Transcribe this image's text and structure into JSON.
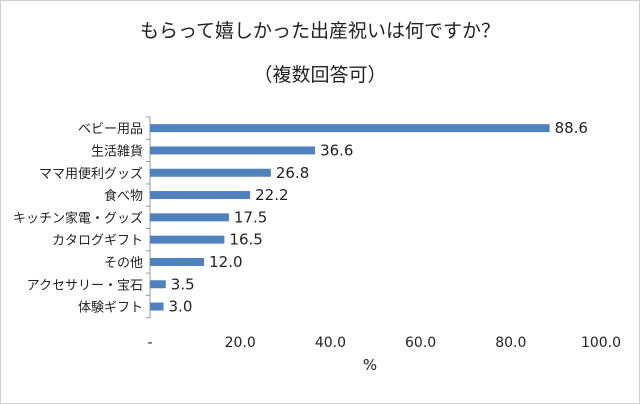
{
  "chart_data": {
    "type": "bar",
    "orientation": "horizontal",
    "title": "もらって嬉しかった出産祝いは何ですか？",
    "subtitle": "（複数回答可）",
    "xlabel": "%",
    "ylabel": "",
    "xlim": [
      0,
      100
    ],
    "x_ticks": [
      "-",
      "20.0",
      "40.0",
      "60.0",
      "80.0",
      "100.0"
    ],
    "grid": false,
    "legend": "none",
    "bar_color": "#4F81BD",
    "categories": [
      "ベビー用品",
      "生活雑貨",
      "ママ用便利グッズ",
      "食べ物",
      "キッチン家電・グッズ",
      "カタログギフト",
      "その他",
      "アクセサリー・宝石",
      "体験ギフト"
    ],
    "values": [
      88.6,
      36.6,
      26.8,
      22.2,
      17.5,
      16.5,
      12.0,
      3.5,
      3.0
    ],
    "value_labels": [
      "88.6",
      "36.6",
      "26.8",
      "22.2",
      "17.5",
      "16.5",
      "12.0",
      "3.5",
      "3.0"
    ]
  }
}
